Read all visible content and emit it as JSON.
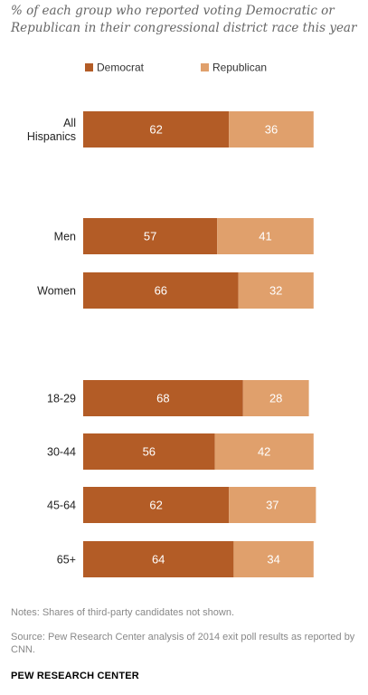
{
  "chart_data": {
    "type": "bar",
    "orientation": "horizontal",
    "stacked": true,
    "subtitle": "% of each group who reported voting Democratic or Republican in their congressional district race this year",
    "categories": [
      "All Hispanics",
      "Men",
      "Women",
      "18-29",
      "30-44",
      "45-64",
      "65+"
    ],
    "category_label_lines": [
      [
        "All",
        "Hispanics"
      ],
      [
        "Men"
      ],
      [
        "Women"
      ],
      [
        "18-29"
      ],
      [
        "30-44"
      ],
      [
        "45-64"
      ],
      [
        "65+"
      ]
    ],
    "groups": [
      [
        "All Hispanics"
      ],
      [
        "Men",
        "Women"
      ],
      [
        "18-29",
        "30-44",
        "45-64",
        "65+"
      ]
    ],
    "series": [
      {
        "name": "Democrat",
        "values": [
          62,
          57,
          66,
          68,
          56,
          62,
          64
        ],
        "color": "#b35c26"
      },
      {
        "name": "Republican",
        "values": [
          36,
          41,
          32,
          28,
          42,
          37,
          34
        ],
        "color": "#e0a06c"
      }
    ],
    "xlim": [
      0,
      100
    ],
    "data_labels": true,
    "legend_position": "top",
    "grid": false
  },
  "footer": {
    "notes": "Notes: Shares of third-party candidates not shown.",
    "source": "Source: Pew Research Center analysis of 2014 exit poll results as reported by CNN.",
    "brand": "PEW RESEARCH CENTER"
  }
}
